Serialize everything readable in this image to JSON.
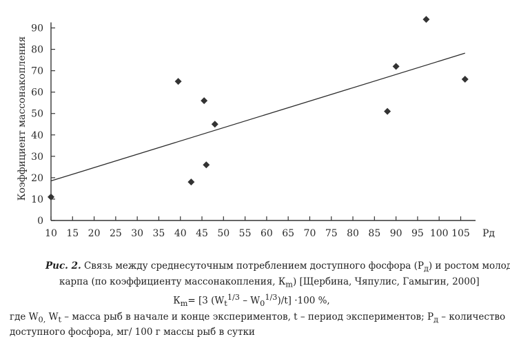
{
  "chart_data": {
    "type": "scatter",
    "ylabel": "Коэффициент массонакопления",
    "xlabel": "Рд",
    "xlim": [
      10,
      107
    ],
    "ylim": [
      0,
      95
    ],
    "x_ticks": [
      10,
      15,
      20,
      25,
      30,
      35,
      40,
      45,
      50,
      55,
      60,
      65,
      70,
      75,
      80,
      85,
      90,
      95,
      100,
      105
    ],
    "y_ticks": [
      0,
      10,
      20,
      30,
      40,
      50,
      60,
      70,
      80,
      90
    ],
    "points": [
      {
        "x": 10,
        "y": 11
      },
      {
        "x": 39.5,
        "y": 65
      },
      {
        "x": 42.5,
        "y": 18
      },
      {
        "x": 45.5,
        "y": 56
      },
      {
        "x": 46,
        "y": 26
      },
      {
        "x": 48,
        "y": 45
      },
      {
        "x": 88,
        "y": 51
      },
      {
        "x": 90,
        "y": 72
      },
      {
        "x": 97,
        "y": 94
      },
      {
        "x": 106,
        "y": 66
      }
    ],
    "trendline": {
      "x": [
        10,
        106
      ],
      "y": [
        18.5,
        78.2
      ]
    },
    "marker_color": "#333333",
    "grid": false
  },
  "caption": {
    "fig_label": "Рис. 2.",
    "line1_rest": " Связь между среднесуточным потреблением доступного фосфора (Р",
    "line1_sub": "д",
    "line1_end": ") и ростом молоди",
    "line2_a": "карпа (по коэффициенту массонакопления, К",
    "line2_sub": "m",
    "line2_b": ") [Щербина, Чяпулис, Гамыгин, 2000]",
    "formula_a": "К",
    "formula_sub": "m",
    "formula_b": "= [3 (W",
    "formula_t_sub": "t",
    "formula_t_sup": "1/3",
    "formula_c": " – W",
    "formula_0_sub": "0",
    "formula_0_sup": "1/3",
    "formula_d": ")/t] ·100 %,",
    "line4_a": "где W",
    "line4_sub0": "0,",
    "line4_b": " W",
    "line4_subt": "t",
    "line4_c": " – масса рыб в начале и конце экспериментов, t – период экспериментов; Р",
    "line4_subd": "д",
    "line4_d": " – количество",
    "line5": "доступного фосфора, мг/ 100 г массы рыб в сутки"
  }
}
